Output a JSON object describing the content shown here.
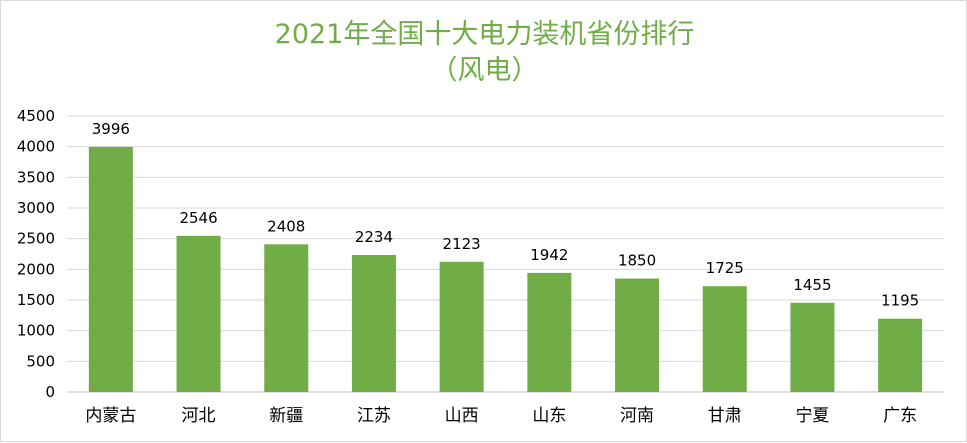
{
  "chart_data": {
    "type": "bar",
    "title": "2021年全国十大电力装机省份排行",
    "subtitle": "（风电）",
    "categories": [
      "内蒙古",
      "河北",
      "新疆",
      "江苏",
      "山西",
      "山东",
      "河南",
      "甘肃",
      "宁夏",
      "广东"
    ],
    "values": [
      3996,
      2546,
      2408,
      2234,
      2123,
      1942,
      1850,
      1725,
      1455,
      1195
    ],
    "data_labels": [
      "3996",
      "2546",
      "2408",
      "2234",
      "2123",
      "1942",
      "1850",
      "1725",
      "1455",
      "1195"
    ],
    "xlabel": "",
    "ylabel": "",
    "ylim": [
      0,
      4500
    ],
    "yticks": [
      "0",
      "500",
      "1000",
      "1500",
      "2000",
      "2500",
      "3000",
      "3500",
      "4000",
      "4500"
    ],
    "grid": true,
    "legend": "none",
    "colors": {
      "bar": "#70ad47",
      "title": "#70ad47",
      "grid": "#d9d9d9",
      "text": "#000000"
    }
  }
}
